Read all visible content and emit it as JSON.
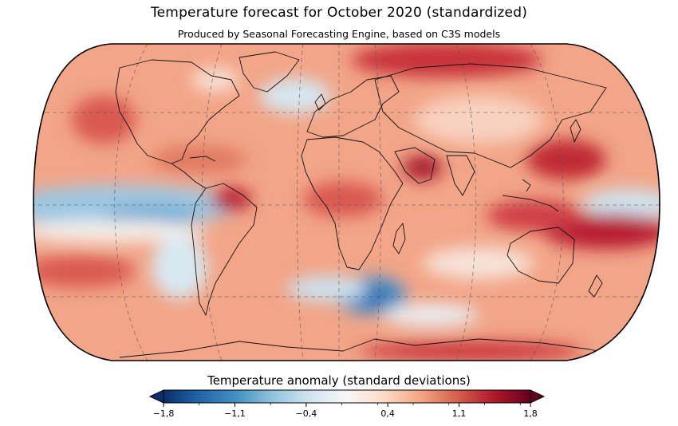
{
  "title": "Temperature forecast for October 2020 (standardized)",
  "subtitle": "Produced by Seasonal Forecasting Engine, based on C3S models",
  "colorbar": {
    "label": "Temperature anomaly (standard deviations)",
    "range": [
      -1.8,
      1.8
    ],
    "ticks": [
      {
        "value": -1.8,
        "label": "−1,8"
      },
      {
        "value": -1.1,
        "label": "−1,1"
      },
      {
        "value": -0.4,
        "label": "−0,4"
      },
      {
        "value": 0.4,
        "label": "0,4"
      },
      {
        "value": 1.1,
        "label": "1,1"
      },
      {
        "value": 1.8,
        "label": "1,8"
      }
    ],
    "colors": [
      "#08306b",
      "#2166ac",
      "#4393c3",
      "#92c5de",
      "#d1e5f0",
      "#f7f7f7",
      "#fddbc7",
      "#f4a582",
      "#d6604d",
      "#b2182b",
      "#67001f"
    ],
    "extend": "both"
  },
  "map": {
    "projection": "Robinson",
    "background_color": "#f2a587",
    "graticule": "dashed"
  }
}
